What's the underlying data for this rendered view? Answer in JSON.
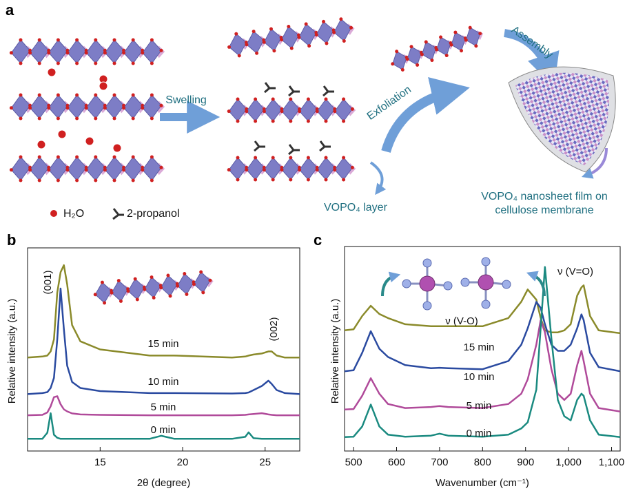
{
  "panel_a": {
    "label": "a",
    "swelling": "Swelling",
    "exfoliation": "Exfoliation",
    "assembly": "Assembly",
    "layer_label": "VOPO₄ layer",
    "film_label": [
      "VOPO₄ nanosheet film on",
      "cellulose membrane"
    ],
    "legend": [
      "H₂O",
      "2-propanol"
    ]
  },
  "chart_data": [
    {
      "type": "line",
      "panel_label": "b",
      "xlabel": "2θ (degree)",
      "ylabel": "Relative intensity (a.u.)",
      "xlim": [
        10.6,
        27.1
      ],
      "ylim": [
        0,
        100
      ],
      "xticks": [
        15,
        20,
        25
      ],
      "annotations": [
        "(001)",
        "(002)"
      ],
      "x": [
        10.6,
        11.5,
        11.8,
        12.0,
        12.2,
        12.4,
        12.6,
        12.8,
        13.0,
        13.3,
        13.8,
        15,
        18,
        18.7,
        19.5,
        23,
        23.8,
        24.0,
        24.3,
        24.8,
        25.2,
        25.4,
        25.7,
        26.2,
        27.1
      ],
      "series": [
        {
          "name": "15 min",
          "color": "#8a8a2a",
          "values": [
            46,
            46.5,
            47,
            49,
            55,
            78,
            88,
            91.5,
            82,
            62,
            54,
            50,
            47,
            47,
            47,
            46,
            46.5,
            47,
            47.5,
            48,
            49,
            49,
            47,
            46,
            46
          ]
        },
        {
          "name": "10 min",
          "color": "#2a4aa0",
          "values": [
            28,
            28.5,
            29,
            31,
            36,
            55,
            80,
            60,
            42,
            34,
            31,
            29.5,
            28.5,
            28.5,
            28.5,
            28.3,
            28.5,
            28.8,
            30,
            32,
            34.6,
            33,
            30,
            28.5,
            28
          ]
        },
        {
          "name": "5 min",
          "color": "#b04a9a",
          "values": [
            17.6,
            17.8,
            19,
            22,
            26.5,
            27,
            23,
            20.5,
            19.5,
            18.5,
            18,
            17.8,
            17.6,
            17.6,
            17.6,
            17.6,
            17.8,
            18,
            18.2,
            18.6,
            18,
            17.8,
            17.6,
            17.6,
            17.6
          ]
        },
        {
          "name": "0 min",
          "color": "#1a8a80",
          "values": [
            6,
            6,
            9,
            18.6,
            8,
            6.5,
            6,
            6,
            6,
            6,
            6,
            6,
            6,
            7.5,
            6,
            6,
            7,
            9.2,
            6.3,
            6,
            6,
            6,
            6,
            6,
            6
          ]
        }
      ]
    },
    {
      "type": "line",
      "panel_label": "c",
      "xlabel": "Wavenumber (cm⁻¹)",
      "ylabel": "Relative intensity (a.u.)",
      "xlim": [
        479,
        1120
      ],
      "ylim": [
        0,
        100
      ],
      "xticks": [
        500,
        600,
        700,
        800,
        900,
        {
          "value": 1000,
          "label": "1,000"
        },
        {
          "value": 1100,
          "label": "1,100"
        }
      ],
      "annotations": [
        "ν (V-O)",
        "ν (V=O)"
      ],
      "x": [
        479,
        500,
        520,
        540,
        560,
        580,
        620,
        680,
        700,
        720,
        800,
        860,
        890,
        905,
        925,
        935,
        945,
        960,
        975,
        990,
        1005,
        1020,
        1030,
        1035,
        1050,
        1070,
        1120
      ],
      "series": [
        {
          "name": "15 min",
          "color": "#8a8a2a",
          "values": [
            59,
            59.5,
            66,
            71,
            67,
            65,
            62,
            61,
            61,
            61,
            61,
            65,
            73,
            79,
            74,
            65,
            59,
            58,
            58,
            59,
            62,
            76,
            80,
            81,
            66,
            59,
            57.6
          ]
        },
        {
          "name": "10 min",
          "color": "#2a4aa0",
          "values": [
            39,
            39.5,
            48,
            58.6,
            50,
            46,
            42,
            40.5,
            40.7,
            40.5,
            40,
            44,
            52,
            60,
            72.9,
            70,
            62,
            52,
            49,
            49,
            52,
            60,
            66.8,
            64,
            48,
            41,
            39
          ]
        },
        {
          "name": "5 min",
          "color": "#b04a9a",
          "values": [
            20.3,
            20.5,
            27,
            35.6,
            28,
            23,
            21,
            21.5,
            22,
            21.5,
            21,
            23,
            28,
            35,
            52,
            64,
            58,
            40,
            28,
            25,
            28,
            42,
            49,
            44,
            28,
            21,
            19.3
          ]
        },
        {
          "name": "0 min",
          "color": "#1a8a80",
          "values": [
            6.8,
            7,
            12,
            22.7,
            12,
            8,
            7,
            7.5,
            8.5,
            7.5,
            7,
            8,
            11,
            14,
            30,
            60,
            90,
            55,
            25,
            17,
            15,
            25,
            28,
            27,
            15,
            8,
            6.8
          ]
        }
      ]
    }
  ]
}
